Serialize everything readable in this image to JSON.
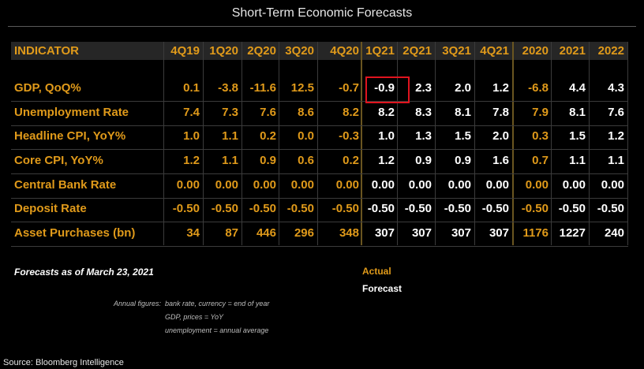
{
  "title": "Short-Term Economic Forecasts",
  "colors": {
    "actual": "#e09a1a",
    "forecast": "#ffffff",
    "highlight": "#e0141e",
    "background": "#000000"
  },
  "chart_data": {
    "type": "table",
    "header_label": "INDICATOR",
    "columns": [
      "4Q19",
      "1Q20",
      "2Q20",
      "3Q20",
      "4Q20",
      "1Q21",
      "2Q21",
      "3Q21",
      "4Q21",
      "2020",
      "2021",
      "2022"
    ],
    "column_status": [
      "actual",
      "actual",
      "actual",
      "actual",
      "actual",
      "forecast",
      "forecast",
      "forecast",
      "forecast",
      "actual",
      "forecast",
      "forecast"
    ],
    "rows": [
      {
        "indicator": "GDP, QoQ%",
        "values": [
          "0.1",
          "-3.8",
          "-11.6",
          "12.5",
          "-0.7",
          "-0.9",
          "2.3",
          "2.0",
          "1.2",
          "-6.8",
          "4.4",
          "4.3"
        ]
      },
      {
        "indicator": "Unemployment Rate",
        "values": [
          "7.4",
          "7.3",
          "7.6",
          "8.6",
          "8.2",
          "8.2",
          "8.3",
          "8.1",
          "7.8",
          "7.9",
          "8.1",
          "7.6"
        ]
      },
      {
        "indicator": "Headline CPI, YoY%",
        "values": [
          "1.0",
          "1.1",
          "0.2",
          "0.0",
          "-0.3",
          "1.0",
          "1.3",
          "1.5",
          "2.0",
          "0.3",
          "1.5",
          "1.2"
        ]
      },
      {
        "indicator": "Core CPI, YoY%",
        "values": [
          "1.2",
          "1.1",
          "0.9",
          "0.6",
          "0.2",
          "1.2",
          "0.9",
          "0.9",
          "1.6",
          "0.7",
          "1.1",
          "1.1"
        ]
      },
      {
        "indicator": "Central Bank Rate",
        "values": [
          "0.00",
          "0.00",
          "0.00",
          "0.00",
          "0.00",
          "0.00",
          "0.00",
          "0.00",
          "0.00",
          "0.00",
          "0.00",
          "0.00"
        ]
      },
      {
        "indicator": "Deposit Rate",
        "values": [
          "-0.50",
          "-0.50",
          "-0.50",
          "-0.50",
          "-0.50",
          "-0.50",
          "-0.50",
          "-0.50",
          "-0.50",
          "-0.50",
          "-0.50",
          "-0.50"
        ]
      },
      {
        "indicator": "Asset Purchases (bn)",
        "values": [
          "34",
          "87",
          "446",
          "296",
          "348",
          "307",
          "307",
          "307",
          "307",
          "1176",
          "1227",
          "240"
        ]
      }
    ],
    "highlighted_cell": {
      "indicator": "GDP, QoQ%",
      "column": "1Q21",
      "value": "-0.9"
    }
  },
  "notes": {
    "forecast_date": "Forecasts as of March 23, 2021",
    "legend_actual": "Actual",
    "legend_forecast": "Forecast",
    "annual_label": "Annual figures:",
    "annual_lines": [
      "bank rate, currency = end of year",
      "GDP, prices = YoY",
      "unemployment = annual average"
    ],
    "source": "Source: Bloomberg Intelligence"
  }
}
